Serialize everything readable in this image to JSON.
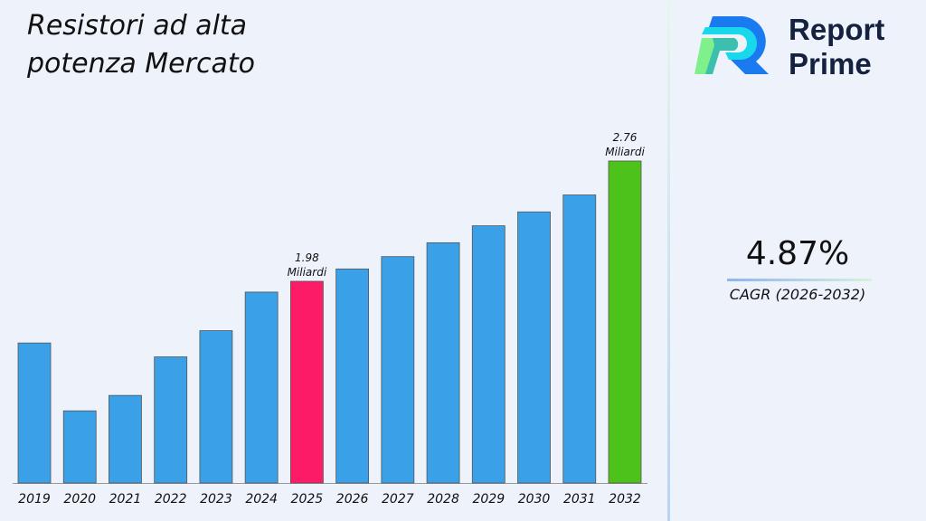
{
  "chart_data": {
    "type": "bar",
    "title": "Resistori ad alta potenza Mercato",
    "categories": [
      "2019",
      "2020",
      "2021",
      "2022",
      "2023",
      "2024",
      "2025",
      "2026",
      "2027",
      "2028",
      "2029",
      "2030",
      "2031",
      "2032"
    ],
    "values": [
      1.58,
      1.14,
      1.24,
      1.49,
      1.66,
      1.91,
      1.98,
      2.06,
      2.14,
      2.23,
      2.34,
      2.43,
      2.54,
      2.76
    ],
    "colors": {
      "default": "#3aa0e8",
      "highlight_2025": "#fc1b67",
      "highlight_2032": "#4cc21b"
    },
    "annotations": [
      {
        "category": "2025",
        "value": "1.98",
        "unit": "Miliardi"
      },
      {
        "category": "2032",
        "value": "2.76",
        "unit": "Miliardi"
      }
    ],
    "xlabel": "",
    "ylabel": "",
    "grid": false
  },
  "brand": {
    "line1": "Report",
    "line2": "Prime"
  },
  "cagr": {
    "value": "4.87%",
    "label": "CAGR (2026-2032)"
  }
}
